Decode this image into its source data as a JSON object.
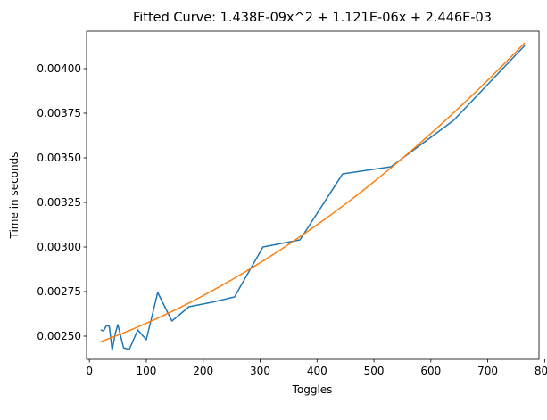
{
  "chart_data": {
    "type": "line",
    "title": "Fitted Curve: 1.438E-09x^2 + 1.121E-06x + 2.446E-03",
    "xlabel": "Toggles",
    "ylabel": "Time in seconds",
    "xlim": [
      -5,
      790
    ],
    "ylim": [
      0.00237,
      0.00421
    ],
    "x_ticks": [
      0,
      100,
      200,
      300,
      400,
      500,
      600,
      700,
      800
    ],
    "y_ticks": [
      0.0025,
      0.00275,
      0.003,
      0.00325,
      0.0035,
      0.00375,
      0.004
    ],
    "x_tick_labels": [
      "0",
      "100",
      "200",
      "300",
      "400",
      "500",
      "600",
      "700",
      "800"
    ],
    "y_tick_labels": [
      "0.00250",
      "0.00275",
      "0.00300",
      "0.00325",
      "0.00350",
      "0.00375",
      "0.00400"
    ],
    "grid": false,
    "series": [
      {
        "color": "#1f77b4",
        "x": [
          20,
          25,
          30,
          35,
          40,
          45,
          50,
          60,
          70,
          85,
          100,
          120,
          145,
          175,
          215,
          255,
          305,
          370,
          445,
          530,
          640,
          765
        ],
        "y": [
          0.002535,
          0.00253,
          0.00256,
          0.002555,
          0.00242,
          0.00251,
          0.002565,
          0.002435,
          0.002425,
          0.002535,
          0.00248,
          0.002745,
          0.002585,
          0.002665,
          0.00269,
          0.00272,
          0.003,
          0.00304,
          0.00341,
          0.00345,
          0.00371,
          0.00413
        ]
      },
      {
        "color": "#ff7f0e",
        "fit": {
          "a": 1.438e-09,
          "b": 1.121e-06,
          "c": 0.002446
        },
        "x_range": [
          20,
          765
        ]
      }
    ]
  }
}
